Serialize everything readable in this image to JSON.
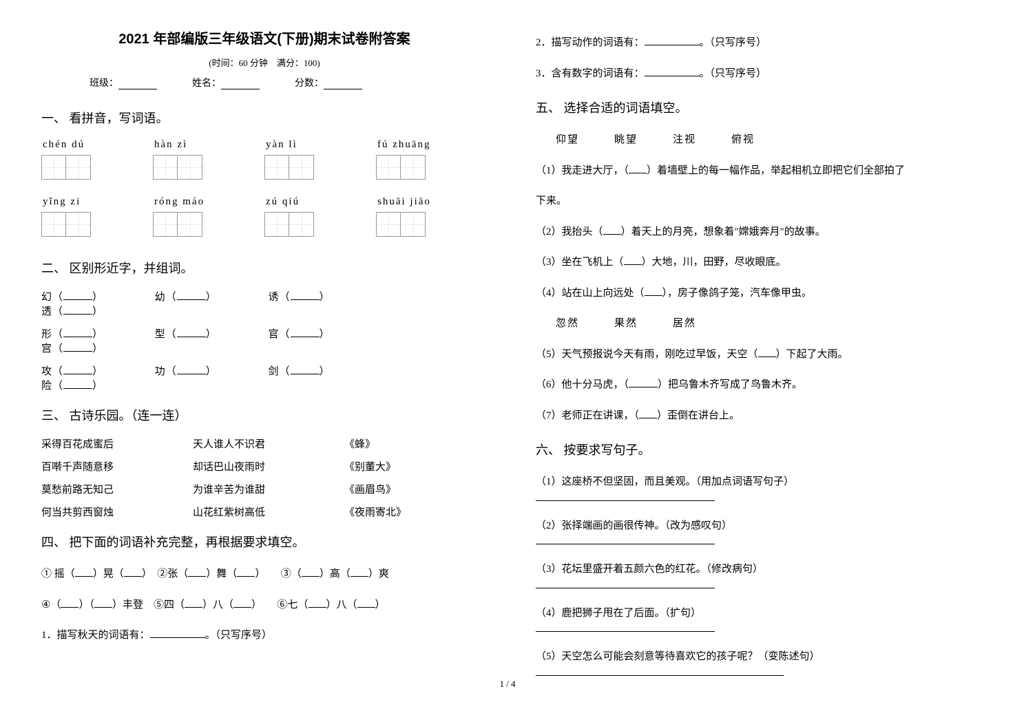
{
  "header": {
    "title": "2021 年部编版三年级语文(下册)期末试卷附答案",
    "subtitle": "(时间：60 分钟　满分：100)",
    "class_label": "班级：",
    "name_label": "姓名：",
    "score_label": "分数："
  },
  "sections": {
    "s1": {
      "head": "一、 看拼音，写词语。"
    },
    "s2": {
      "head": "二、 区别形近字，并组词。"
    },
    "s3": {
      "head": "三、 古诗乐园。（连一连）"
    },
    "s4": {
      "head": "四、 把下面的词语补充完整，再根据要求填空。"
    },
    "s5": {
      "head": "五、 选择合适的词语填空。"
    },
    "s6": {
      "head": "六、 按要求写句子。"
    }
  },
  "q1": {
    "row1": [
      "chén  dú",
      "hàn  zì",
      "yàn   lì",
      "fú  zhuāng"
    ],
    "row2": [
      "yǐng  zi",
      "róng  máo",
      "zú   qiú",
      "shuāi  jiāo"
    ]
  },
  "q2": {
    "rows": [
      [
        "幻",
        "幼",
        "诱",
        "透"
      ],
      [
        "形",
        "型",
        "官",
        "宫"
      ],
      [
        "攻",
        "功",
        "剑",
        "险"
      ]
    ]
  },
  "q3": {
    "rows": [
      [
        "采得百花成蜜后",
        "天人谁人不识君",
        "《蜂》"
      ],
      [
        "百啭千声随意移",
        "却话巴山夜雨时",
        "《别董大》"
      ],
      [
        "莫愁前路无知己",
        "为谁辛苦为谁甜",
        "《画眉鸟》"
      ],
      [
        "何当共剪西窗烛",
        "山花红紫树高低",
        "《夜雨寄北》"
      ]
    ]
  },
  "q4": {
    "line1_a": "① 摇（",
    "line1_b": "）晃（",
    "line1_c": "）　②张（",
    "line1_d": "）舞（",
    "line1_e": "）　　③（",
    "line1_f": "）高（",
    "line1_g": "）爽",
    "line2_a": "④（",
    "line2_b": "）（",
    "line2_c": "）丰登　⑤四（",
    "line2_d": "）八（",
    "line2_e": "）　　⑥七（",
    "line2_f": "）八（",
    "line2_g": "）",
    "p1_a": "1．描写秋天的词语有：",
    "p1_b": "。（只写序号）",
    "p2_a": "2．描写动作的词语有：",
    "p2_b": "。（只写序号）",
    "p3_a": "3．含有数字的词语有：",
    "p3_b": "。（只写序号）"
  },
  "q5": {
    "opts1": "　仰望　　　眺望　　　注视　　　俯视",
    "l1a": "（1）我走进大厅，（",
    "l1b": "）着墙壁上的每一幅作品，举起相机立即把它们全部拍了",
    "l1c": "下来。",
    "l2a": "（2）我抬头（",
    "l2b": "）着天上的月亮，想象着\"嫦娥奔月\"的故事。",
    "l3a": "（3）坐在飞机上（",
    "l3b": "）大地，川，田野，尽收眼底。",
    "l4a": "（4）站在山上向远处（",
    "l4b": "），房子像鸽子笼，汽车像甲虫。",
    "opts2": "　忽然　　　果然　　　居然",
    "l5a": "（5）天气预报说今天有雨，刚吃过早饭，天空（",
    "l5b": "）下起了大雨。",
    "l6a": "（6）他十分马虎，（",
    "l6b": "）把乌鲁木齐写成了鸟鲁木齐。",
    "l7a": "（7）老师正在讲课，（",
    "l7b": "）歪倒在讲台上。"
  },
  "q6": {
    "l1": "（1）这座桥不但坚固，而且美观。（用加点词语写句子）",
    "l2": "（2）张择端画的画很传神。（改为感叹句）",
    "l3": "（3）花坛里盛开着五颜六色的红花。（修改病句）",
    "l4": "（4）鹿把狮子甩在了后面。（扩句）",
    "l5": "（5）天空怎么可能会刻意等待喜欢它的孩子呢？（变陈述句）"
  },
  "footer": {
    "page": "1 / 4"
  }
}
